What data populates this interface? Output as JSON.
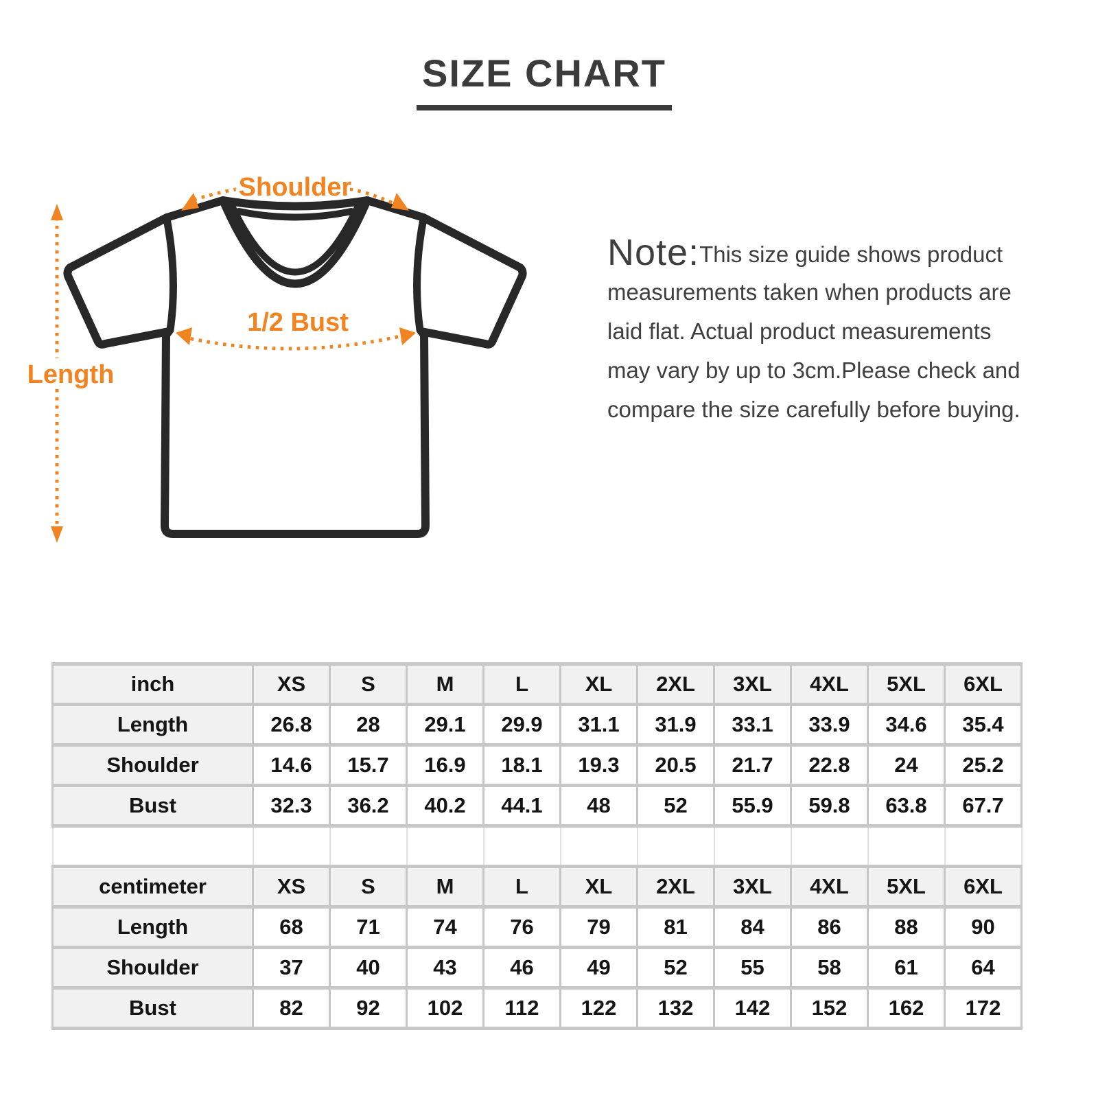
{
  "page": {
    "title": "SIZE CHART"
  },
  "diagram": {
    "shoulder_label": "Shoulder",
    "bust_label": "1/2 Bust",
    "length_label": "Length",
    "accent_color": "#f18321",
    "outline_color": "#282828"
  },
  "note": {
    "prefix": "Note:",
    "lines": [
      "This size guide shows product",
      "measurements taken when products are",
      "laid flat. Actual product measurements",
      "may vary by up to 3cm.Please check and",
      "compare the size carefully before buying."
    ]
  },
  "size_table": {
    "sizes": [
      "XS",
      "S",
      "M",
      "L",
      "XL",
      "2XL",
      "3XL",
      "4XL",
      "5XL",
      "6XL"
    ],
    "sections": [
      {
        "unit": "inch",
        "rows": [
          {
            "label": "Length",
            "values": [
              "26.8",
              "28",
              "29.1",
              "29.9",
              "31.1",
              "31.9",
              "33.1",
              "33.9",
              "34.6",
              "35.4"
            ]
          },
          {
            "label": "Shoulder",
            "values": [
              "14.6",
              "15.7",
              "16.9",
              "18.1",
              "19.3",
              "20.5",
              "21.7",
              "22.8",
              "24",
              "25.2"
            ]
          },
          {
            "label": "Bust",
            "values": [
              "32.3",
              "36.2",
              "40.2",
              "44.1",
              "48",
              "52",
              "55.9",
              "59.8",
              "63.8",
              "67.7"
            ]
          }
        ]
      },
      {
        "unit": "centimeter",
        "rows": [
          {
            "label": "Length",
            "values": [
              "68",
              "71",
              "74",
              "76",
              "79",
              "81",
              "84",
              "86",
              "88",
              "90"
            ]
          },
          {
            "label": "Shoulder",
            "values": [
              "37",
              "40",
              "43",
              "46",
              "49",
              "52",
              "55",
              "58",
              "61",
              "64"
            ]
          },
          {
            "label": "Bust",
            "values": [
              "82",
              "92",
              "102",
              "112",
              "122",
              "132",
              "142",
              "152",
              "162",
              "172"
            ]
          }
        ]
      }
    ]
  }
}
